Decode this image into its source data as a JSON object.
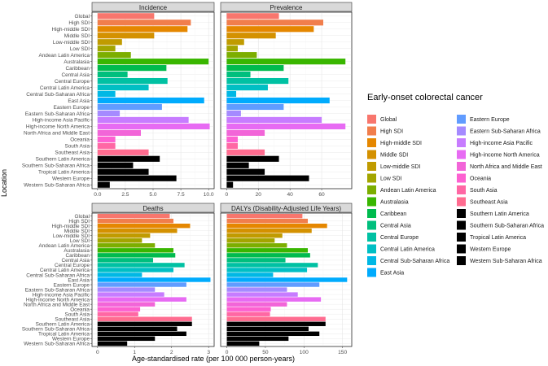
{
  "figure": {
    "ylabel": "Location",
    "xlabel": "Age-standardised rate (per 100 000 person-years)"
  },
  "legend": {
    "title": "Early-onset colorectal cancer",
    "placement": "right"
  },
  "colors": [
    "#F8766D",
    "#F17E4C",
    "#E58700",
    "#D49100",
    "#C09B00",
    "#A3A500",
    "#7CAE00",
    "#39B600",
    "#00BB4E",
    "#00BF7D",
    "#00C1A3",
    "#00BFC4",
    "#00B8E5",
    "#00ABFD",
    "#619CFF",
    "#A58AFF",
    "#C77CFF",
    "#E76BF3",
    "#F265D8",
    "#FD61D1",
    "#FF67A4",
    "#FF6C90"
  ],
  "chart_data": [
    {
      "type": "bar",
      "orientation": "horizontal",
      "title": "Incidence",
      "categories": [
        "Global",
        "High SDI",
        "High-middle SDI",
        "Middle SDI",
        "Low-middle SDI",
        "Low SDI",
        "Andean Latin America",
        "Australasia",
        "Caribbean",
        "Central Asia",
        "Central Europe",
        "Central Latin America",
        "Central Sub-Saharan Africa",
        "East Asia",
        "Eastern Europe",
        "Eastern Sub-Saharan Africa",
        "High-income Asia Pacific",
        "High-income North America",
        "North Africa and Middle East",
        "Oceania",
        "South Asia",
        "Southeast Asia",
        "Southern Latin America",
        "Southern Sub-Saharan Africa",
        "Tropical Latin America",
        "Western Europe",
        "Western Sub-Saharan Africa"
      ],
      "values": [
        5.1,
        8.4,
        8.1,
        5.1,
        2.2,
        1.6,
        3.0,
        10.0,
        6.2,
        2.7,
        6.3,
        4.6,
        1.6,
        9.6,
        5.8,
        2.0,
        8.2,
        10.1,
        3.9,
        1.6,
        1.6,
        4.6,
        5.6,
        3.2,
        4.6,
        7.1,
        1.1
      ],
      "xticks": [
        0,
        2.5,
        5,
        7.5,
        10
      ],
      "xtick_labels": [
        "0.0",
        "2.5",
        "5.0",
        "7.5",
        "10.0"
      ],
      "xlim": [
        -0.5,
        10.5
      ],
      "grid": true
    },
    {
      "type": "bar",
      "orientation": "horizontal",
      "title": "Prevalence",
      "categories": [
        "Global",
        "High SDI",
        "High-middle SDI",
        "Middle SDI",
        "Low-middle SDI",
        "Low SDI",
        "Andean Latin America",
        "Australasia",
        "Caribbean",
        "Central Asia",
        "Central Europe",
        "Central Latin America",
        "Central Sub-Saharan Africa",
        "East Asia",
        "Eastern Europe",
        "Eastern Sub-Saharan Africa",
        "High-income Asia Pacific",
        "High-income North America",
        "North Africa and Middle East",
        "Oceania",
        "South Asia",
        "Southeast Asia",
        "Southern Latin America",
        "Southern Sub-Saharan Africa",
        "Tropical Latin America",
        "Western Europe",
        "Western Sub-Saharan Africa"
      ],
      "values": [
        33,
        61,
        55,
        31,
        11,
        7,
        19,
        75,
        36,
        15,
        39,
        26,
        6,
        65,
        36,
        9,
        60,
        75,
        24,
        7,
        7,
        24,
        33,
        14,
        24,
        52,
        4
      ],
      "xticks": [
        0,
        20,
        40,
        60
      ],
      "xtick_labels": [
        "0",
        "20",
        "40",
        "60"
      ],
      "xlim": [
        -3.8,
        79
      ],
      "grid": true
    },
    {
      "type": "bar",
      "orientation": "horizontal",
      "title": "Deaths",
      "categories": [
        "Global",
        "High SDI",
        "High-middle SDI",
        "Middle SDI",
        "Low-middle SDI",
        "Low SDI",
        "Andean Latin America",
        "Australasia",
        "Caribbean",
        "Central Asia",
        "Central Europe",
        "Central Latin America",
        "Central Sub-Saharan Africa",
        "East Asia",
        "Eastern Europe",
        "Eastern Sub-Saharan Africa",
        "High-income Asia Pacific",
        "High-income North America",
        "North Africa and Middle East",
        "Oceania",
        "South Asia",
        "Southeast Asia",
        "Southern Latin America",
        "Southern Sub-Saharan Africa",
        "Tropical Latin America",
        "Western Europe",
        "Western Sub-Saharan Africa"
      ],
      "values": [
        1.95,
        2.05,
        2.5,
        2.15,
        1.42,
        1.2,
        1.55,
        2.05,
        2.1,
        1.5,
        2.35,
        2.05,
        1.2,
        3.05,
        2.4,
        1.55,
        1.8,
        2.4,
        1.55,
        1.15,
        1.1,
        2.55,
        2.55,
        2.15,
        2.4,
        1.55,
        0.8
      ],
      "xticks": [
        0,
        1,
        2,
        3
      ],
      "xtick_labels": [
        "0",
        "1",
        "2",
        "3"
      ],
      "xlim": [
        -0.15,
        3.15
      ],
      "grid": true
    },
    {
      "type": "bar",
      "orientation": "horizontal",
      "title": "DALYs (Disability-Adjusted Life Years)",
      "categories": [
        "Global",
        "High SDI",
        "High-middle SDI",
        "Middle SDI",
        "Low-middle SDI",
        "Low SDI",
        "Andean Latin America",
        "Australasia",
        "Caribbean",
        "Central Asia",
        "Central Europe",
        "Central Latin America",
        "Central Sub-Saharan Africa",
        "East Asia",
        "Eastern Europe",
        "Eastern Sub-Saharan Africa",
        "High-income Asia Pacific",
        "High-income North America",
        "North Africa and Middle East",
        "Oceania",
        "South Asia",
        "Southeast Asia",
        "Southern Latin America",
        "Southern Sub-Saharan Africa",
        "Tropical Latin America",
        "Western Europe",
        "Western Sub-Saharan Africa"
      ],
      "values": [
        98,
        105,
        130,
        110,
        72,
        62,
        78,
        105,
        108,
        76,
        118,
        104,
        60,
        156,
        120,
        78,
        92,
        122,
        78,
        57,
        56,
        128,
        128,
        106,
        120,
        80,
        42
      ],
      "xticks": [
        0,
        50,
        100,
        150
      ],
      "xtick_labels": [
        "0",
        "50",
        "100",
        "150"
      ],
      "xlim": [
        -8,
        162
      ],
      "grid": true
    }
  ]
}
